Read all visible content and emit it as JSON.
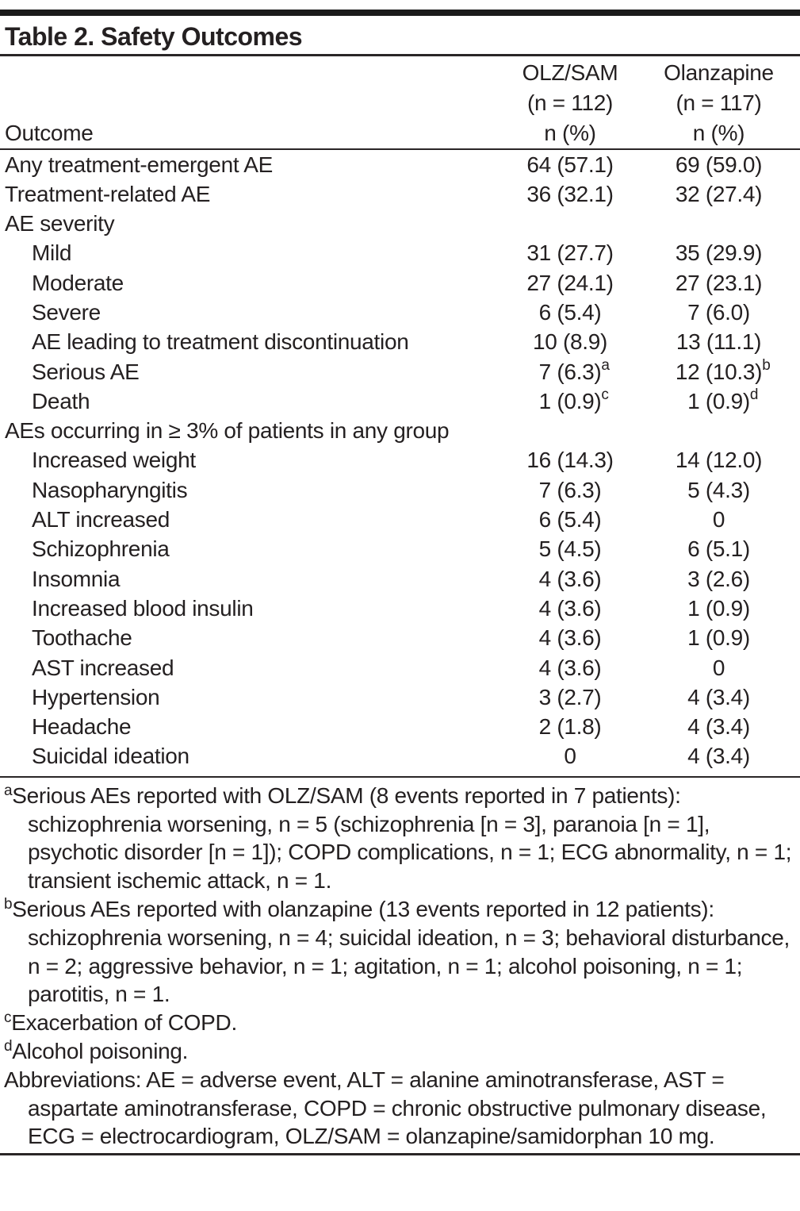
{
  "title": "Table 2. Safety Outcomes",
  "header": {
    "outcome_label": "Outcome",
    "col1": {
      "drug": "OLZ/SAM",
      "n": "(n = 112)",
      "unit": "n (%)"
    },
    "col2": {
      "drug": "Olanzapine",
      "n": "(n = 117)",
      "unit": "n (%)"
    }
  },
  "rows": [
    {
      "label": "Any treatment-emergent AE",
      "olz_sam": "64 (57.1)",
      "olz_sam_sup": "",
      "olanzapine": "69 (59.0)",
      "olanzapine_sup": ""
    },
    {
      "label": "Treatment-related AE",
      "olz_sam": "36 (32.1)",
      "olz_sam_sup": "",
      "olanzapine": "32 (27.4)",
      "olanzapine_sup": ""
    },
    {
      "label": "AE severity",
      "olz_sam": "",
      "olz_sam_sup": "",
      "olanzapine": "",
      "olanzapine_sup": ""
    },
    {
      "label": "Mild",
      "olz_sam": "31 (27.7)",
      "olz_sam_sup": "",
      "olanzapine": "35 (29.9)",
      "olanzapine_sup": ""
    },
    {
      "label": "Moderate",
      "olz_sam": "27 (24.1)",
      "olz_sam_sup": "",
      "olanzapine": "27 (23.1)",
      "olanzapine_sup": ""
    },
    {
      "label": "Severe",
      "olz_sam": "6 (5.4)",
      "olz_sam_sup": "",
      "olanzapine": "7 (6.0)",
      "olanzapine_sup": ""
    },
    {
      "label": "AE leading to treatment discontinuation",
      "olz_sam": "10 (8.9)",
      "olz_sam_sup": "",
      "olanzapine": "13 (11.1)",
      "olanzapine_sup": ""
    },
    {
      "label": "Serious AE",
      "olz_sam": "7 (6.3)",
      "olz_sam_sup": "a",
      "olanzapine": "12 (10.3)",
      "olanzapine_sup": "b"
    },
    {
      "label": "Death",
      "olz_sam": "1 (0.9)",
      "olz_sam_sup": "c",
      "olanzapine": "1 (0.9)",
      "olanzapine_sup": "d"
    },
    {
      "label": "AEs occurring in ≥ 3% of patients in any group",
      "olz_sam": "",
      "olz_sam_sup": "",
      "olanzapine": "",
      "olanzapine_sup": ""
    },
    {
      "label": "Increased weight",
      "olz_sam": "16 (14.3)",
      "olz_sam_sup": "",
      "olanzapine": "14 (12.0)",
      "olanzapine_sup": ""
    },
    {
      "label": "Nasopharyngitis",
      "olz_sam": "7 (6.3)",
      "olz_sam_sup": "",
      "olanzapine": "5 (4.3)",
      "olanzapine_sup": ""
    },
    {
      "label": "ALT increased",
      "olz_sam": "6 (5.4)",
      "olz_sam_sup": "",
      "olanzapine": "0",
      "olanzapine_sup": ""
    },
    {
      "label": "Schizophrenia",
      "olz_sam": "5 (4.5)",
      "olz_sam_sup": "",
      "olanzapine": "6 (5.1)",
      "olanzapine_sup": ""
    },
    {
      "label": "Insomnia",
      "olz_sam": "4 (3.6)",
      "olz_sam_sup": "",
      "olanzapine": "3 (2.6)",
      "olanzapine_sup": ""
    },
    {
      "label": "Increased blood insulin",
      "olz_sam": "4 (3.6)",
      "olz_sam_sup": "",
      "olanzapine": "1 (0.9)",
      "olanzapine_sup": ""
    },
    {
      "label": "Toothache",
      "olz_sam": "4 (3.6)",
      "olz_sam_sup": "",
      "olanzapine": "1 (0.9)",
      "olanzapine_sup": ""
    },
    {
      "label": "AST increased",
      "olz_sam": "4 (3.6)",
      "olz_sam_sup": "",
      "olanzapine": "0",
      "olanzapine_sup": ""
    },
    {
      "label": "Hypertension",
      "olz_sam": "3 (2.7)",
      "olz_sam_sup": "",
      "olanzapine": "4 (3.4)",
      "olanzapine_sup": ""
    },
    {
      "label": "Headache",
      "olz_sam": "2 (1.8)",
      "olz_sam_sup": "",
      "olanzapine": "4 (3.4)",
      "olanzapine_sup": ""
    },
    {
      "label": "Suicidal ideation",
      "olz_sam": "0",
      "olz_sam_sup": "",
      "olanzapine": "4 (3.4)",
      "olanzapine_sup": ""
    }
  ],
  "footnotes": [
    {
      "sup": "a",
      "text": "Serious AEs reported with OLZ/SAM (8 events reported in 7 patients): schizophrenia worsening, n = 5 (schizophrenia [n = 3], paranoia [n = 1], psychotic disorder [n = 1]); COPD complications, n = 1; ECG abnormality, n = 1; transient ischemic attack, n = 1."
    },
    {
      "sup": "b",
      "text": "Serious AEs reported with olanzapine (13 events reported in 12 patients): schizophrenia worsening, n = 4; suicidal ideation, n = 3; behavioral disturbance, n = 2; aggressive behavior, n = 1; agitation, n = 1; alcohol poisoning, n = 1; parotitis, n = 1."
    },
    {
      "sup": "c",
      "text": "Exacerbation of COPD."
    },
    {
      "sup": "d",
      "text": "Alcohol poisoning."
    },
    {
      "sup": "",
      "text": "Abbreviations: AE = adverse event, ALT = alanine aminotransferase, AST = aspartate aminotransferase, COPD = chronic obstructive pulmonary disease, ECG = electrocardiogram, OLZ/SAM = olanzapine/samidorphan 10 mg."
    }
  ],
  "colors": {
    "text": "#242021",
    "top_bar": "#1a1a1a",
    "rule": "#2a2627",
    "background": "#ffffff"
  }
}
